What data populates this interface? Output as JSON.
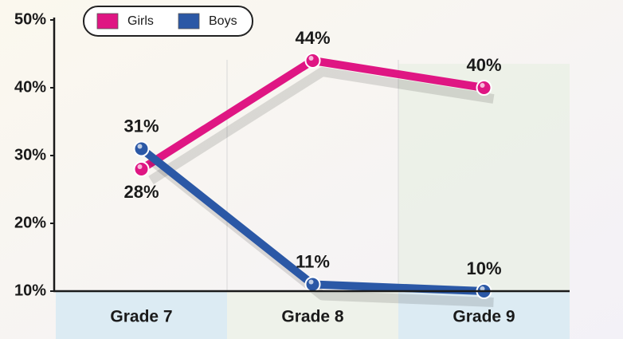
{
  "chart_data": {
    "type": "line",
    "categories": [
      "Grade 7",
      "Grade 8",
      "Grade 9"
    ],
    "series": [
      {
        "name": "Girls",
        "color": "#df1683",
        "values": [
          28,
          44,
          40
        ],
        "value_labels": [
          "28%",
          "44%",
          "40%"
        ]
      },
      {
        "name": "Boys",
        "color": "#2b58a6",
        "values": [
          31,
          11,
          10
        ],
        "value_labels": [
          "31%",
          "11%",
          "10%"
        ]
      }
    ],
    "ylim": [
      10,
      50
    ],
    "yticks": [
      {
        "value": 10,
        "label": "10%"
      },
      {
        "value": 20,
        "label": "20%"
      },
      {
        "value": 30,
        "label": "30%"
      },
      {
        "value": 40,
        "label": "40%"
      },
      {
        "value": 50,
        "label": "50%"
      }
    ]
  }
}
